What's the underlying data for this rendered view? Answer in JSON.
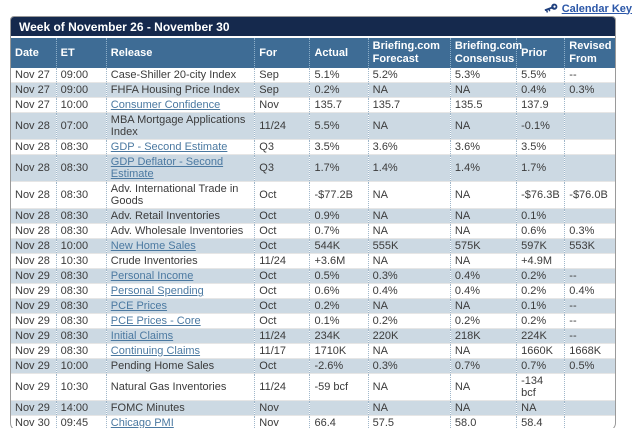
{
  "calendar_key": {
    "label": "Calendar Key"
  },
  "colors": {
    "title_bar": "#15294d",
    "header_bg": "#3e6c95",
    "alt_row": "#ccd9e3",
    "link": "#4b79a1",
    "calkey_link": "#2b57a8"
  },
  "table": {
    "title": "Week of November 26 - November 30",
    "columns": [
      {
        "key": "date",
        "label": "Date"
      },
      {
        "key": "et",
        "label": "ET"
      },
      {
        "key": "release",
        "label": "Release"
      },
      {
        "key": "for",
        "label": "For"
      },
      {
        "key": "actual",
        "label": "Actual"
      },
      {
        "key": "forecast",
        "label": "Briefing.com Forecast"
      },
      {
        "key": "consensus",
        "label": "Briefing.com Consensus"
      },
      {
        "key": "prior",
        "label": "Prior"
      },
      {
        "key": "revised",
        "label": "Revised From"
      }
    ],
    "rows": [
      {
        "date": "Nov 27",
        "et": "09:00",
        "release": "Case-Shiller 20-city Index",
        "is_link": false,
        "for": "Sep",
        "actual": "5.1%",
        "forecast": "5.2%",
        "consensus": "5.3%",
        "prior": "5.5%",
        "revised": "--"
      },
      {
        "date": "Nov 27",
        "et": "09:00",
        "release": "FHFA Housing Price Index",
        "is_link": false,
        "for": "Sep",
        "actual": "0.2%",
        "forecast": "NA",
        "consensus": "NA",
        "prior": "0.4%",
        "revised": "0.3%"
      },
      {
        "date": "Nov 27",
        "et": "10:00",
        "release": "Consumer Confidence",
        "is_link": true,
        "for": "Nov",
        "actual": "135.7",
        "forecast": "135.7",
        "consensus": "135.5",
        "prior": "137.9",
        "revised": ""
      },
      {
        "date": "Nov 28",
        "et": "07:00",
        "release": "MBA Mortgage Applications Index",
        "is_link": false,
        "for": "11/24",
        "actual": "5.5%",
        "forecast": "NA",
        "consensus": "NA",
        "prior": "-0.1%",
        "revised": ""
      },
      {
        "date": "Nov 28",
        "et": "08:30",
        "release": "GDP - Second Estimate",
        "is_link": true,
        "for": "Q3",
        "actual": "3.5%",
        "forecast": "3.6%",
        "consensus": "3.6%",
        "prior": "3.5%",
        "revised": ""
      },
      {
        "date": "Nov 28",
        "et": "08:30",
        "release": "GDP Deflator - Second Estimate",
        "is_link": true,
        "for": "Q3",
        "actual": "1.7%",
        "forecast": "1.4%",
        "consensus": "1.4%",
        "prior": "1.7%",
        "revised": ""
      },
      {
        "date": "Nov 28",
        "et": "08:30",
        "release": "Adv. International Trade in Goods",
        "is_link": false,
        "for": "Oct",
        "actual": "-$77.2B",
        "forecast": "NA",
        "consensus": "NA",
        "prior": "-$76.3B",
        "revised": "-$76.0B"
      },
      {
        "date": "Nov 28",
        "et": "08:30",
        "release": "Adv. Retail Inventories",
        "is_link": false,
        "for": "Oct",
        "actual": "0.9%",
        "forecast": "NA",
        "consensus": "NA",
        "prior": "0.1%",
        "revised": ""
      },
      {
        "date": "Nov 28",
        "et": "08:30",
        "release": "Adv. Wholesale Inventories",
        "is_link": false,
        "for": "Oct",
        "actual": "0.7%",
        "forecast": "NA",
        "consensus": "NA",
        "prior": "0.6%",
        "revised": "0.3%"
      },
      {
        "date": "Nov 28",
        "et": "10:00",
        "release": "New Home Sales",
        "is_link": true,
        "for": "Oct",
        "actual": "544K",
        "forecast": "555K",
        "consensus": "575K",
        "prior": "597K",
        "revised": "553K"
      },
      {
        "date": "Nov 28",
        "et": "10:30",
        "release": "Crude Inventories",
        "is_link": false,
        "for": "11/24",
        "actual": "+3.6M",
        "forecast": "NA",
        "consensus": "NA",
        "prior": "+4.9M",
        "revised": ""
      },
      {
        "date": "Nov 29",
        "et": "08:30",
        "release": "Personal Income",
        "is_link": true,
        "for": "Oct",
        "actual": "0.5%",
        "forecast": "0.3%",
        "consensus": "0.4%",
        "prior": "0.2%",
        "revised": "--"
      },
      {
        "date": "Nov 29",
        "et": "08:30",
        "release": "Personal Spending",
        "is_link": true,
        "for": "Oct",
        "actual": "0.6%",
        "forecast": "0.4%",
        "consensus": "0.4%",
        "prior": "0.2%",
        "revised": "0.4%"
      },
      {
        "date": "Nov 29",
        "et": "08:30",
        "release": "PCE Prices",
        "is_link": true,
        "for": "Oct",
        "actual": "0.2%",
        "forecast": "NA",
        "consensus": "NA",
        "prior": "0.1%",
        "revised": "--"
      },
      {
        "date": "Nov 29",
        "et": "08:30",
        "release": "PCE Prices - Core",
        "is_link": true,
        "for": "Oct",
        "actual": "0.1%",
        "forecast": "0.2%",
        "consensus": "0.2%",
        "prior": "0.2%",
        "revised": "--"
      },
      {
        "date": "Nov 29",
        "et": "08:30",
        "release": "Initial Claims",
        "is_link": true,
        "for": "11/24",
        "actual": "234K",
        "forecast": "220K",
        "consensus": "218K",
        "prior": "224K",
        "revised": "--"
      },
      {
        "date": "Nov 29",
        "et": "08:30",
        "release": "Continuing Claims",
        "is_link": true,
        "for": "11/17",
        "actual": "1710K",
        "forecast": "NA",
        "consensus": "NA",
        "prior": "1660K",
        "revised": "1668K"
      },
      {
        "date": "Nov 29",
        "et": "10:00",
        "release": "Pending Home Sales",
        "is_link": false,
        "for": "Oct",
        "actual": "-2.6%",
        "forecast": "0.3%",
        "consensus": "0.7%",
        "prior": "0.7%",
        "revised": "0.5%"
      },
      {
        "date": "Nov 29",
        "et": "10:30",
        "release": "Natural Gas Inventories",
        "is_link": false,
        "for": "11/24",
        "actual": "-59 bcf",
        "forecast": "NA",
        "consensus": "NA",
        "prior": "-134 bcf",
        "revised": ""
      },
      {
        "date": "Nov 29",
        "et": "14:00",
        "release": "FOMC Minutes",
        "is_link": false,
        "for": "Nov",
        "actual": "",
        "forecast": "NA",
        "consensus": "NA",
        "prior": "NA",
        "revised": ""
      },
      {
        "date": "Nov 30",
        "et": "09:45",
        "release": "Chicago PMI",
        "is_link": true,
        "for": "Nov",
        "actual": "66.4",
        "forecast": "57.5",
        "consensus": "58.0",
        "prior": "58.4",
        "revised": ""
      }
    ]
  }
}
